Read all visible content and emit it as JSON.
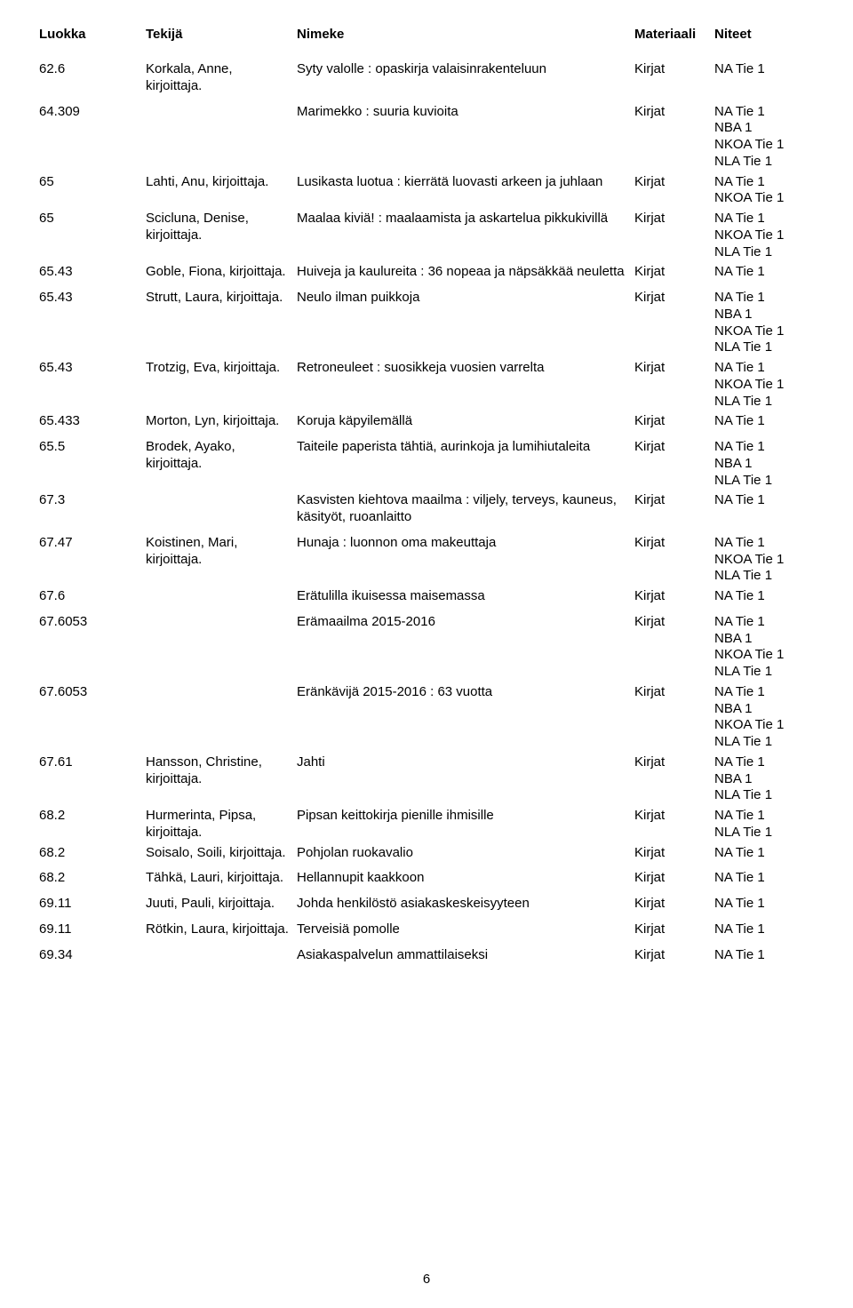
{
  "header": {
    "luokka": "Luokka",
    "tekija": "Tekijä",
    "nimeke": "Nimeke",
    "materiaali": "Materiaali",
    "niteet": "Niteet"
  },
  "page_number": "6",
  "rows": [
    {
      "luokka": "62.6",
      "tekija": "Korkala, Anne, kirjoittaja.",
      "nimeke": "Syty valolle : opaskirja valaisinrakenteluun",
      "materiaali": "Kirjat",
      "niteet": [
        "NA Tie 1"
      ]
    },
    {
      "luokka": "64.309",
      "tekija": "",
      "nimeke": "Marimekko : suuria kuvioita",
      "materiaali": "Kirjat",
      "niteet": [
        "NA Tie 1",
        "NBA 1",
        "NKOA Tie 1",
        "NLA Tie 1"
      ]
    },
    {
      "luokka": "65",
      "tekija": "Lahti, Anu, kirjoittaja.",
      "nimeke": "Lusikasta luotua : kierrätä luovasti arkeen ja juhlaan",
      "materiaali": "Kirjat",
      "niteet": [
        "NA Tie 1",
        "NKOA Tie 1"
      ]
    },
    {
      "luokka": "65",
      "tekija": "Scicluna, Denise, kirjoittaja.",
      "nimeke": "Maalaa kiviä! : maalaamista ja askartelua pikkukivillä",
      "materiaali": "Kirjat",
      "niteet": [
        "NA Tie 1",
        "NKOA Tie 1",
        "NLA Tie 1"
      ]
    },
    {
      "luokka": "65.43",
      "tekija": "Goble, Fiona, kirjoittaja.",
      "nimeke": "Huiveja ja kaulureita : 36 nopeaa ja näpsäkkää neuletta",
      "materiaali": "Kirjat",
      "niteet": [
        "NA Tie 1"
      ]
    },
    {
      "luokka": "65.43",
      "tekija": "Strutt, Laura, kirjoittaja.",
      "nimeke": "Neulo ilman puikkoja",
      "materiaali": "Kirjat",
      "niteet": [
        "NA Tie 1",
        "NBA 1",
        "NKOA Tie 1",
        "NLA Tie 1"
      ]
    },
    {
      "luokka": "65.43",
      "tekija": "Trotzig, Eva, kirjoittaja.",
      "nimeke": "Retroneuleet : suosikkeja vuosien varrelta",
      "materiaali": "Kirjat",
      "niteet": [
        "NA Tie 1",
        "NKOA Tie 1",
        "NLA Tie 1"
      ]
    },
    {
      "luokka": "65.433",
      "tekija": "Morton, Lyn, kirjoittaja.",
      "nimeke": "Koruja käpyilemällä",
      "materiaali": "Kirjat",
      "niteet": [
        "NA Tie 1"
      ]
    },
    {
      "luokka": "65.5",
      "tekija": "Brodek, Ayako, kirjoittaja.",
      "nimeke": "Taiteile paperista tähtiä, aurinkoja ja lumihiutaleita",
      "materiaali": "Kirjat",
      "niteet": [
        "NA Tie 1",
        "NBA 1",
        "NLA Tie 1"
      ]
    },
    {
      "luokka": "67.3",
      "tekija": "",
      "nimeke": "Kasvisten kiehtova maailma : viljely, terveys, kauneus, käsityöt, ruoanlaitto",
      "materiaali": "Kirjat",
      "niteet": [
        "NA Tie 1"
      ]
    },
    {
      "luokka": "67.47",
      "tekija": "Koistinen, Mari, kirjoittaja.",
      "nimeke": "Hunaja : luonnon oma makeuttaja",
      "materiaali": "Kirjat",
      "niteet": [
        "NA Tie 1",
        "NKOA Tie 1",
        "NLA Tie 1"
      ]
    },
    {
      "luokka": "67.6",
      "tekija": "",
      "nimeke": "Erätulilla ikuisessa maisemassa",
      "materiaali": "Kirjat",
      "niteet": [
        "NA Tie 1"
      ]
    },
    {
      "luokka": "67.6053",
      "tekija": "",
      "nimeke": "Erämaailma 2015-2016",
      "materiaali": "Kirjat",
      "niteet": [
        "NA Tie 1",
        "NBA 1",
        "NKOA Tie 1",
        "NLA Tie 1"
      ]
    },
    {
      "luokka": "67.6053",
      "tekija": "",
      "nimeke": "Eränkävijä 2015-2016 : 63 vuotta",
      "materiaali": "Kirjat",
      "niteet": [
        "NA Tie 1",
        "NBA 1",
        "NKOA Tie 1",
        "NLA Tie 1"
      ]
    },
    {
      "luokka": "67.61",
      "tekija": "Hansson, Christine, kirjoittaja.",
      "nimeke": "Jahti",
      "materiaali": "Kirjat",
      "niteet": [
        "NA Tie 1",
        "NBA 1",
        "NLA Tie 1"
      ]
    },
    {
      "luokka": "68.2",
      "tekija": "Hurmerinta, Pipsa, kirjoittaja.",
      "nimeke": "Pipsan keittokirja pienille ihmisille",
      "materiaali": "Kirjat",
      "niteet": [
        "NA Tie 1",
        "NLA Tie 1"
      ]
    },
    {
      "luokka": "68.2",
      "tekija": "Soisalo, Soili, kirjoittaja.",
      "nimeke": "Pohjolan ruokavalio",
      "materiaali": "Kirjat",
      "niteet": [
        "NA Tie 1"
      ]
    },
    {
      "luokka": "68.2",
      "tekija": "Tähkä, Lauri, kirjoittaja.",
      "nimeke": "Hellannupit kaakkoon",
      "materiaali": "Kirjat",
      "niteet": [
        "NA Tie 1"
      ]
    },
    {
      "luokka": "69.11",
      "tekija": "Juuti, Pauli, kirjoittaja.",
      "nimeke": "Johda henkilöstö asiakaskeskeisyyteen",
      "materiaali": "Kirjat",
      "niteet": [
        "NA Tie 1"
      ]
    },
    {
      "luokka": "69.11",
      "tekija": "Rötkin, Laura, kirjoittaja.",
      "nimeke": "Terveisiä pomolle",
      "materiaali": "Kirjat",
      "niteet": [
        "NA Tie 1"
      ]
    },
    {
      "luokka": "69.34",
      "tekija": "",
      "nimeke": "Asiakaspalvelun ammattilaiseksi",
      "materiaali": "Kirjat",
      "niteet": [
        "NA Tie 1"
      ]
    }
  ]
}
